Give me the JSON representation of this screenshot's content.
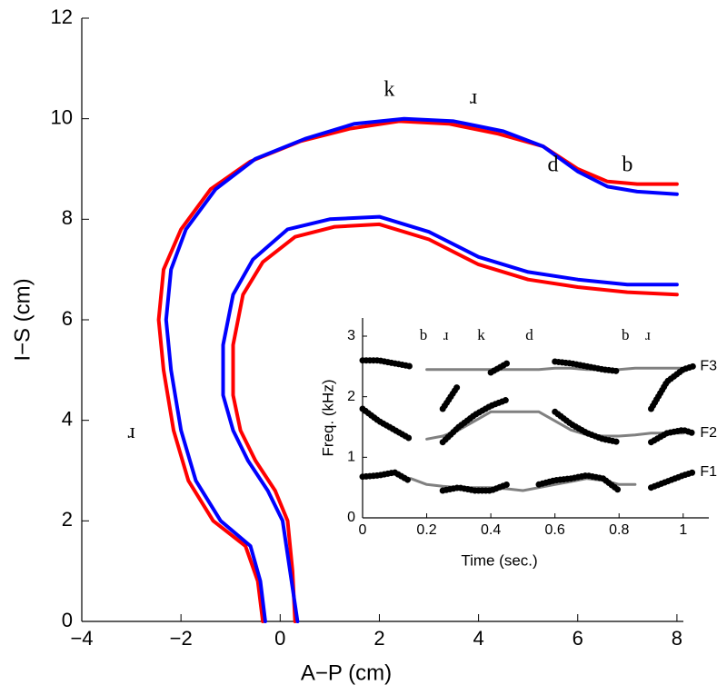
{
  "chart_data": [
    {
      "type": "line",
      "xlabel": "A−P (cm)",
      "ylabel": "I−S (cm)",
      "xlim": [
        -4,
        8.13
      ],
      "ylim": [
        0,
        12
      ],
      "xticks": [
        {
          "value": -4,
          "label": "−4"
        },
        {
          "value": -2,
          "label": "−2"
        },
        0,
        2,
        4,
        6,
        8
      ],
      "yticks": [
        0,
        2,
        4,
        6,
        8,
        10,
        12
      ],
      "series": [
        {
          "color": "#ff0000",
          "x": [
            -0.35,
            -0.45,
            -0.7,
            -1.35,
            -1.85,
            -2.15,
            -2.35,
            -2.45,
            -2.35,
            -2.0,
            -1.4,
            -0.6,
            0.4,
            1.4,
            2.4,
            3.4,
            4.4,
            5.3,
            6.0,
            6.6,
            7.2,
            8.0
          ],
          "values": [
            0,
            0.8,
            1.5,
            2.0,
            2.8,
            3.8,
            5.0,
            6.0,
            7.0,
            7.8,
            8.6,
            9.15,
            9.55,
            9.8,
            9.95,
            9.9,
            9.7,
            9.45,
            9.0,
            8.75,
            8.7,
            8.7
          ]
        },
        {
          "color": "#ff0000",
          "x": [
            0.3,
            0.25,
            0.15,
            -0.1,
            -0.5,
            -0.8,
            -0.95,
            -0.95,
            -0.75,
            -0.35,
            0.3,
            1.1,
            2.0,
            3.0,
            4.0,
            5.0,
            6.0,
            7.0,
            8.0
          ],
          "values": [
            0,
            1.0,
            2.0,
            2.6,
            3.2,
            3.8,
            4.5,
            5.5,
            6.5,
            7.15,
            7.65,
            7.85,
            7.9,
            7.6,
            7.1,
            6.8,
            6.65,
            6.55,
            6.5
          ]
        },
        {
          "color": "#0000ff",
          "x": [
            -0.3,
            -0.4,
            -0.6,
            -1.2,
            -1.7,
            -2.0,
            -2.2,
            -2.3,
            -2.2,
            -1.9,
            -1.3,
            -0.5,
            0.5,
            1.5,
            2.5,
            3.5,
            4.5,
            5.3,
            6.0,
            6.6,
            7.2,
            8.0
          ],
          "values": [
            0,
            0.8,
            1.5,
            2.0,
            2.8,
            3.8,
            5.0,
            6.0,
            7.0,
            7.8,
            8.6,
            9.2,
            9.6,
            9.9,
            10.0,
            9.95,
            9.75,
            9.45,
            8.95,
            8.65,
            8.55,
            8.5
          ]
        },
        {
          "color": "#0000ff",
          "x": [
            0.35,
            0.2,
            0.05,
            -0.25,
            -0.65,
            -0.95,
            -1.15,
            -1.15,
            -0.95,
            -0.55,
            0.15,
            1.0,
            2.0,
            3.0,
            4.0,
            5.0,
            6.0,
            7.0,
            8.0
          ],
          "values": [
            0,
            1.0,
            2.0,
            2.6,
            3.2,
            3.8,
            4.5,
            5.5,
            6.5,
            7.2,
            7.8,
            8.0,
            8.05,
            7.75,
            7.25,
            6.95,
            6.8,
            6.7,
            6.7
          ]
        }
      ],
      "annotations": [
        {
          "text": "k",
          "x": 2.2,
          "y": 10.55
        },
        {
          "text": "ɹ",
          "x": 3.9,
          "y": 10.4
        },
        {
          "text": "d",
          "x": 5.5,
          "y": 9.05
        },
        {
          "text": "b",
          "x": 7.0,
          "y": 9.05
        },
        {
          "text": "ɹ",
          "x": -3.0,
          "y": 3.75
        }
      ]
    },
    {
      "type": "line",
      "xlabel": "Time (sec.)",
      "ylabel": "Freq. (kHz)",
      "xlim": [
        0,
        1.08
      ],
      "ylim": [
        0,
        3.3
      ],
      "xticks": [
        0,
        0.2,
        0.4,
        0.6,
        0.8,
        1
      ],
      "yticks": [
        0,
        1,
        2,
        3
      ],
      "x": [
        0,
        0.05,
        0.1,
        0.15,
        0.2,
        0.25,
        0.3,
        0.35,
        0.4,
        0.45,
        0.5,
        0.55,
        0.6,
        0.65,
        0.7,
        0.75,
        0.8,
        0.85,
        0.9,
        0.95,
        1.0,
        1.03
      ],
      "series": [
        {
          "color": "#808080",
          "values": [
            null,
            null,
            null,
            null,
            2.45,
            2.45,
            2.45,
            2.45,
            2.45,
            2.45,
            2.45,
            2.45,
            2.47,
            2.47,
            2.45,
            2.45,
            2.45,
            2.47,
            2.47,
            2.47,
            2.47,
            null
          ]
        },
        {
          "color": "#808080",
          "values": [
            null,
            null,
            null,
            null,
            1.3,
            1.35,
            1.45,
            1.6,
            1.75,
            1.75,
            1.75,
            1.75,
            1.6,
            1.45,
            1.37,
            1.35,
            1.35,
            1.37,
            1.4,
            1.4,
            1.4,
            null
          ]
        },
        {
          "color": "#808080",
          "values": [
            null,
            null,
            null,
            0.65,
            0.55,
            0.52,
            0.5,
            0.5,
            0.5,
            0.48,
            0.45,
            0.5,
            0.55,
            0.6,
            0.65,
            0.62,
            0.55,
            0.55,
            null,
            null,
            null,
            null
          ]
        },
        {
          "name": "F3",
          "color": "#000000",
          "values": [
            2.6,
            2.6,
            2.55,
            2.5,
            null,
            1.8,
            2.2,
            null,
            2.4,
            2.55,
            null,
            null,
            2.58,
            2.55,
            2.5,
            2.45,
            2.42,
            null,
            1.8,
            2.25,
            2.45,
            2.5
          ]
        },
        {
          "name": "F2",
          "color": "#000000",
          "values": [
            1.8,
            1.6,
            1.45,
            1.3,
            null,
            1.25,
            1.5,
            1.7,
            1.85,
            1.95,
            null,
            null,
            1.75,
            1.55,
            1.4,
            1.3,
            1.25,
            null,
            1.25,
            1.4,
            1.45,
            1.4
          ]
        },
        {
          "name": "F1",
          "color": "#000000",
          "values": [
            0.68,
            0.7,
            0.75,
            0.6,
            null,
            0.45,
            0.5,
            0.45,
            0.45,
            0.55,
            null,
            0.55,
            0.62,
            0.65,
            0.7,
            0.65,
            0.45,
            null,
            0.5,
            0.6,
            0.7,
            0.75
          ]
        }
      ],
      "annotations": [
        {
          "text": "b",
          "x": 0.19,
          "y": 3.0
        },
        {
          "text": "ɹ",
          "x": 0.26,
          "y": 3.0
        },
        {
          "text": "k",
          "x": 0.37,
          "y": 3.0
        },
        {
          "text": "d",
          "x": 0.52,
          "y": 3.0
        },
        {
          "text": "b",
          "x": 0.82,
          "y": 3.0
        },
        {
          "text": "ɹ",
          "x": 0.89,
          "y": 3.0
        }
      ]
    }
  ]
}
